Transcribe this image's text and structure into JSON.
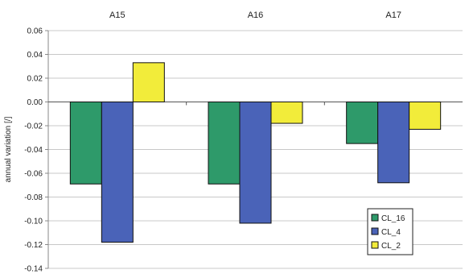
{
  "chart_data": {
    "type": "bar",
    "title": "",
    "xlabel": "",
    "ylabel": "annual variation [/]",
    "categories": [
      "A15",
      "A16",
      "A17"
    ],
    "category_labels_position": "top",
    "ylim": [
      -0.14,
      0.06
    ],
    "yticks": [
      0.06,
      0.04,
      0.02,
      0.0,
      -0.02,
      -0.04,
      -0.06,
      -0.08,
      -0.1,
      -0.12,
      -0.14
    ],
    "ytick_labels": [
      "0.06",
      "0.04",
      "0.02",
      "0.00",
      "-0.02",
      "-0.04",
      "-0.06",
      "-0.08",
      "-0.10",
      "-0.12",
      "-0.14"
    ],
    "grid": true,
    "legend_position": "bottom-right",
    "series": [
      {
        "name": "CL_16",
        "color": "#2e9a6a",
        "values": [
          -0.069,
          -0.069,
          -0.035
        ]
      },
      {
        "name": "CL_4",
        "color": "#4a63b8",
        "values": [
          -0.118,
          -0.102,
          -0.068
        ]
      },
      {
        "name": "CL_2",
        "color": "#f2ec3a",
        "values": [
          0.033,
          -0.018,
          -0.023
        ]
      }
    ]
  }
}
